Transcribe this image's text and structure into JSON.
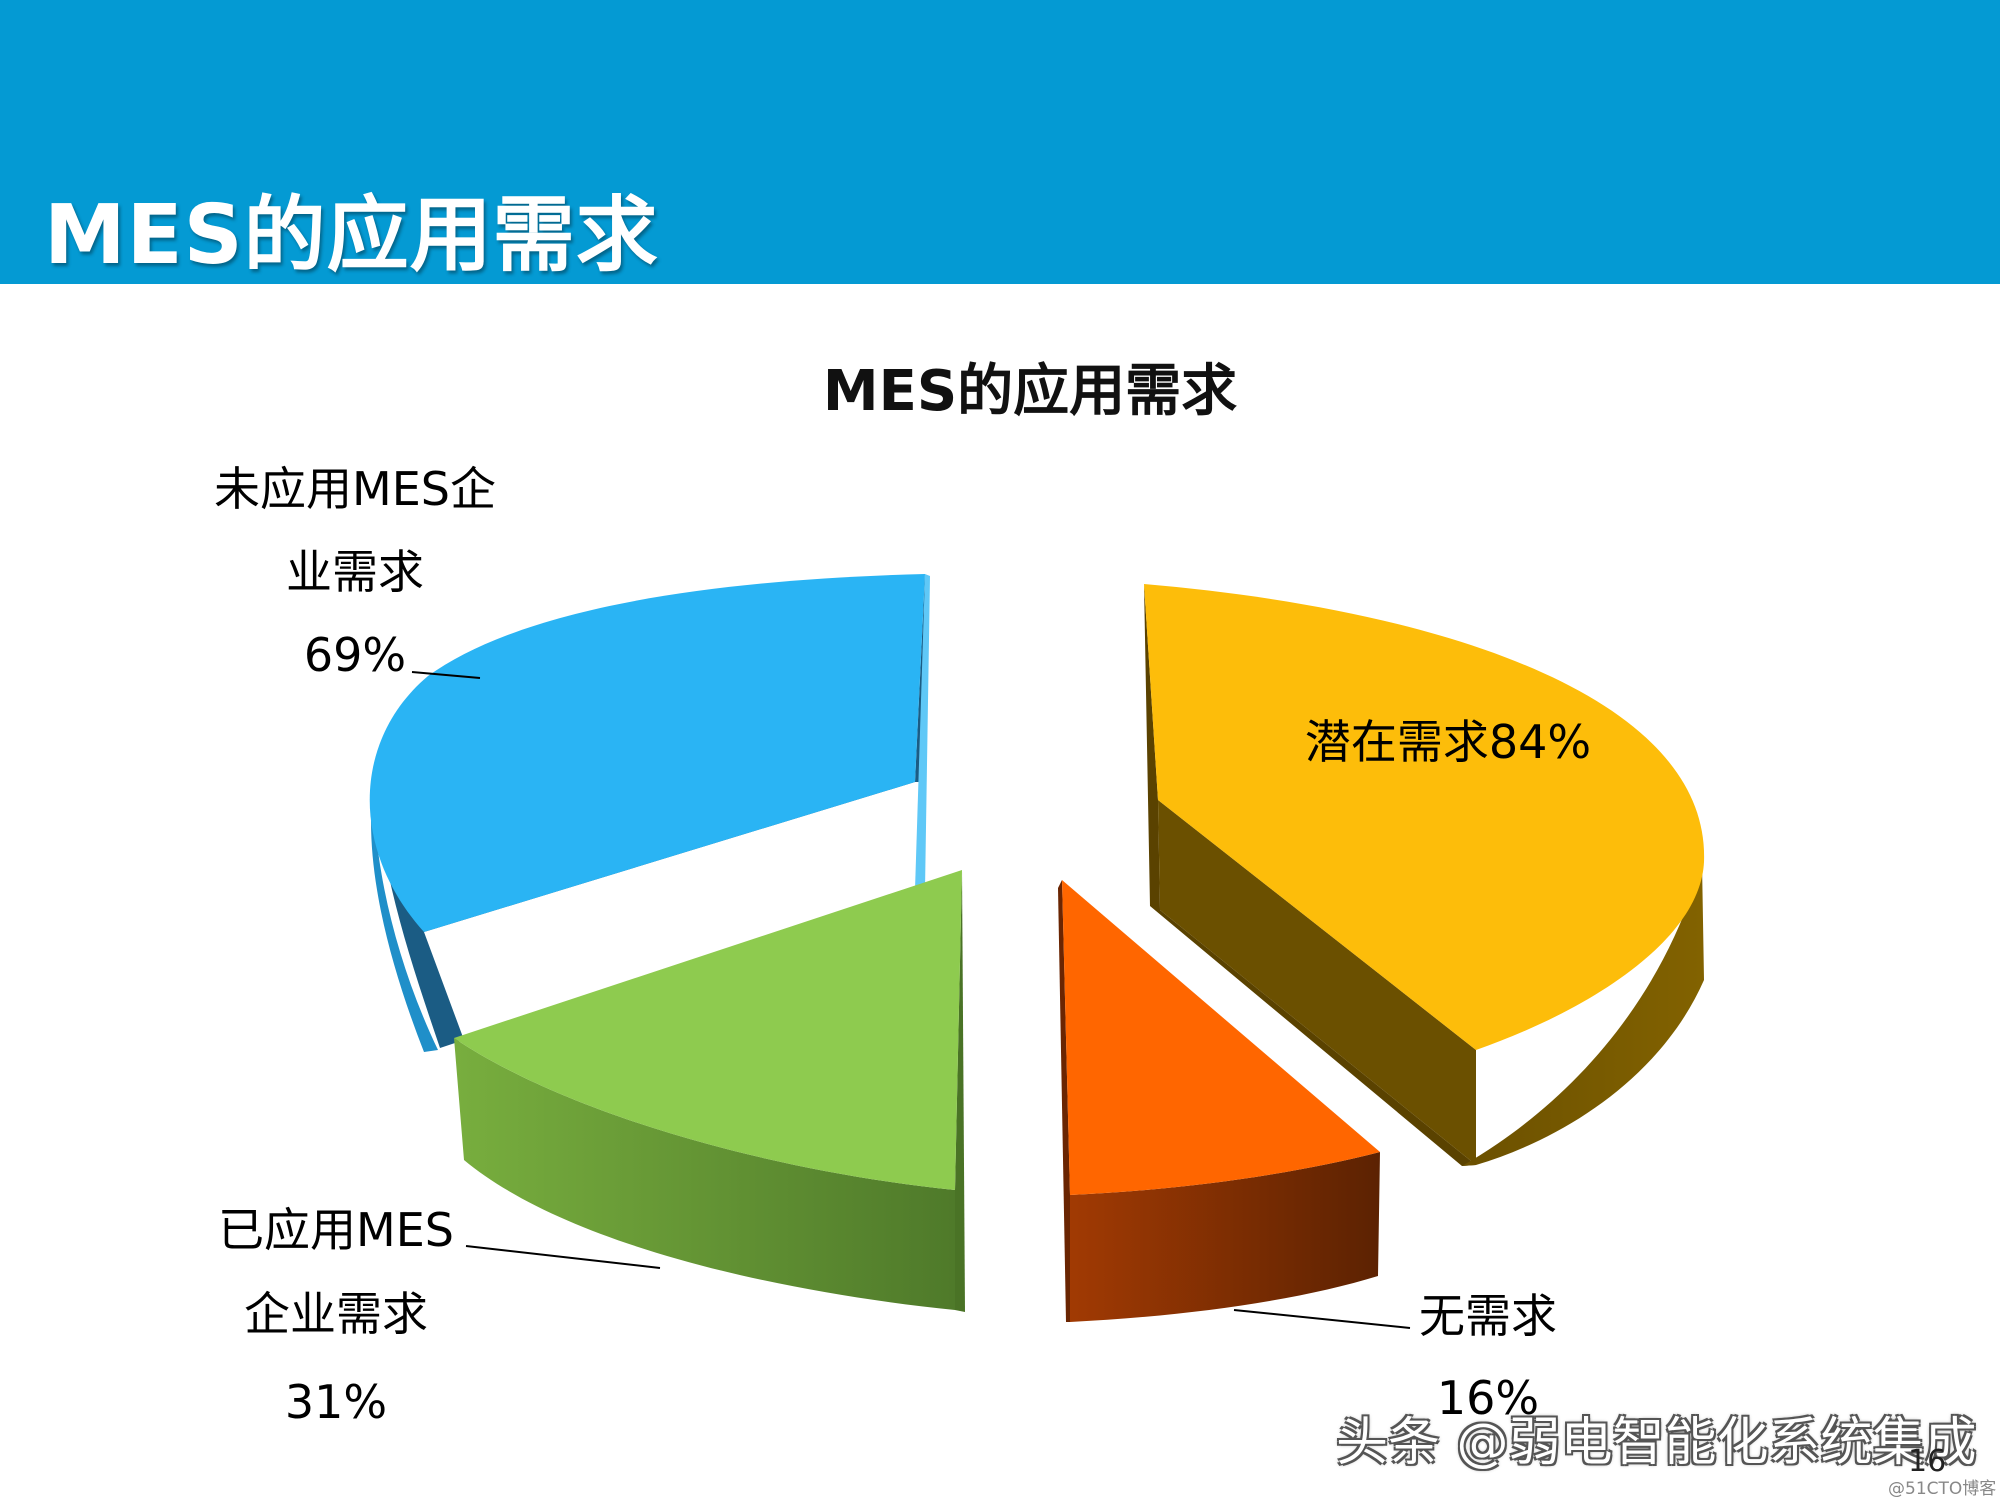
{
  "slide": {
    "header_title": "MES的应用需求",
    "page_number": "16",
    "watermark": "头条 @弱电智能化系统集成",
    "site_mark": "@51CTO博客"
  },
  "colors": {
    "banner": "#049ad3",
    "blue_top": "#2ab4f4",
    "blue_side": "#1b5c84",
    "green_top": "#8ecb4f",
    "green_side": "#5d8c33",
    "orange_top": "#ff6600",
    "orange_side": "#7a2a02",
    "gold_top": "#fdbd0a",
    "gold_side": "#6b5000"
  },
  "chart_data": {
    "type": "pie",
    "title": "MES的应用需求",
    "slices": [
      {
        "id": "blue",
        "label_lines": [
          "未应用MES企",
          "业需求",
          "69%"
        ],
        "value": 69
      },
      {
        "id": "green",
        "label_lines": [
          "已应用MES",
          "企业需求",
          "31%"
        ],
        "value": 31
      },
      {
        "id": "orange",
        "label_lines": [
          "无需求",
          "16%"
        ],
        "value": 16
      },
      {
        "id": "gold",
        "label_lines": [
          "潜在需求84%"
        ],
        "value": 84
      }
    ]
  }
}
